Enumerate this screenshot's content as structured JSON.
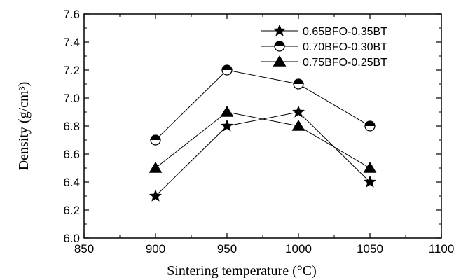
{
  "chart_data": {
    "type": "line",
    "xlabel": "Sintering temperature (°C)",
    "ylabel": "Density (g/cm³)",
    "xlim": [
      850,
      1100
    ],
    "ylim": [
      6.0,
      7.6
    ],
    "x_ticks": [
      "850",
      "900",
      "950",
      "1000",
      "1050",
      "1100"
    ],
    "y_ticks": [
      "6.0",
      "6.2",
      "6.4",
      "6.6",
      "6.8",
      "7.0",
      "7.2",
      "7.4",
      "7.6"
    ],
    "x": [
      900,
      950,
      1000,
      1050
    ],
    "series": [
      {
        "name": "0.65BFO-0.35BT",
        "marker": "star",
        "values": [
          6.3,
          6.8,
          6.9,
          6.4
        ]
      },
      {
        "name": "0.70BFO-0.30BT",
        "marker": "half-filled-circle",
        "values": [
          6.7,
          7.2,
          7.1,
          6.8
        ]
      },
      {
        "name": "0.75BFO-0.25BT",
        "marker": "triangle",
        "values": [
          6.5,
          6.9,
          6.8,
          6.5
        ]
      }
    ],
    "grid": false,
    "legend_position": "top-right"
  }
}
